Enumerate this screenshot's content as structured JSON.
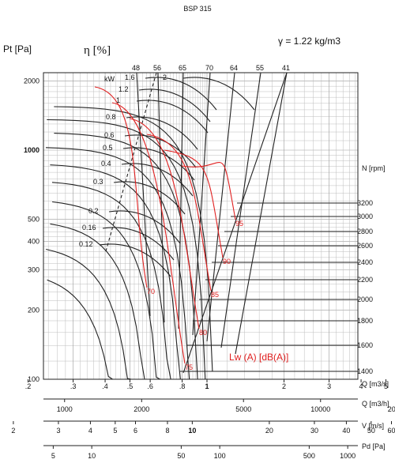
{
  "chart_data": {
    "type": "line",
    "title": "BSP 315",
    "density_label": "γ = 1.22 kg/m3",
    "ylabel": "Pt [Pa]",
    "eta_label": "η [%]",
    "kw_label": "kW",
    "rpm_label": "N [rpm]",
    "lw_label": "Lw (A) [dB(A)]",
    "y_scale": "log",
    "y_ticks": [
      "100",
      "200",
      "300",
      "400",
      "500",
      "1000",
      "2000"
    ],
    "q_m3s_label": "Q [m3/s]",
    "q_m3s_ticks": [
      ".2",
      ".3",
      ".4",
      ".5",
      ".6",
      ".8",
      "1",
      "2",
      "3",
      "4",
      "5",
      "6"
    ],
    "q_m3h_label": "Q [m3/h]",
    "q_m3h_ticks": [
      "500",
      "1000",
      "2000",
      "5000",
      "10000",
      "20000"
    ],
    "v_label": "V [m/s]",
    "v_ticks": [
      "2",
      "3",
      "4",
      "5",
      "6",
      "8",
      "10",
      "20",
      "30",
      "40",
      "50",
      "60",
      "80"
    ],
    "pd_label": "Pd [Pa]",
    "pd_ticks": [
      "1",
      "5",
      "10",
      "50",
      "100",
      "500",
      "1000"
    ],
    "rpm_curves": [
      {
        "rpm": "3200",
        "pt_max": 1550
      },
      {
        "rpm": "3000",
        "pt_max": 1360
      },
      {
        "rpm": "2800",
        "pt_max": 1190
      },
      {
        "rpm": "2600",
        "pt_max": 1030
      },
      {
        "rpm": "2400",
        "pt_max": 870
      },
      {
        "rpm": "2200",
        "pt_max": 735
      },
      {
        "rpm": "2000",
        "pt_max": 610
      },
      {
        "rpm": "1800",
        "pt_max": 495
      },
      {
        "rpm": "1600",
        "pt_max": 390
      },
      {
        "rpm": "1400",
        "pt_max": 300
      }
    ],
    "kw_lines": [
      "0.12",
      "0.16",
      "0.2",
      "0.3",
      "0.4",
      "0.5",
      "0.6",
      "0.8",
      "1",
      "1.2",
      "1.6",
      "2"
    ],
    "efficiency_lines": [
      "48",
      "56",
      "65",
      "70",
      "64",
      "55",
      "41"
    ],
    "noise_labels": [
      "70",
      "75",
      "80",
      "85",
      "90",
      "95"
    ]
  }
}
